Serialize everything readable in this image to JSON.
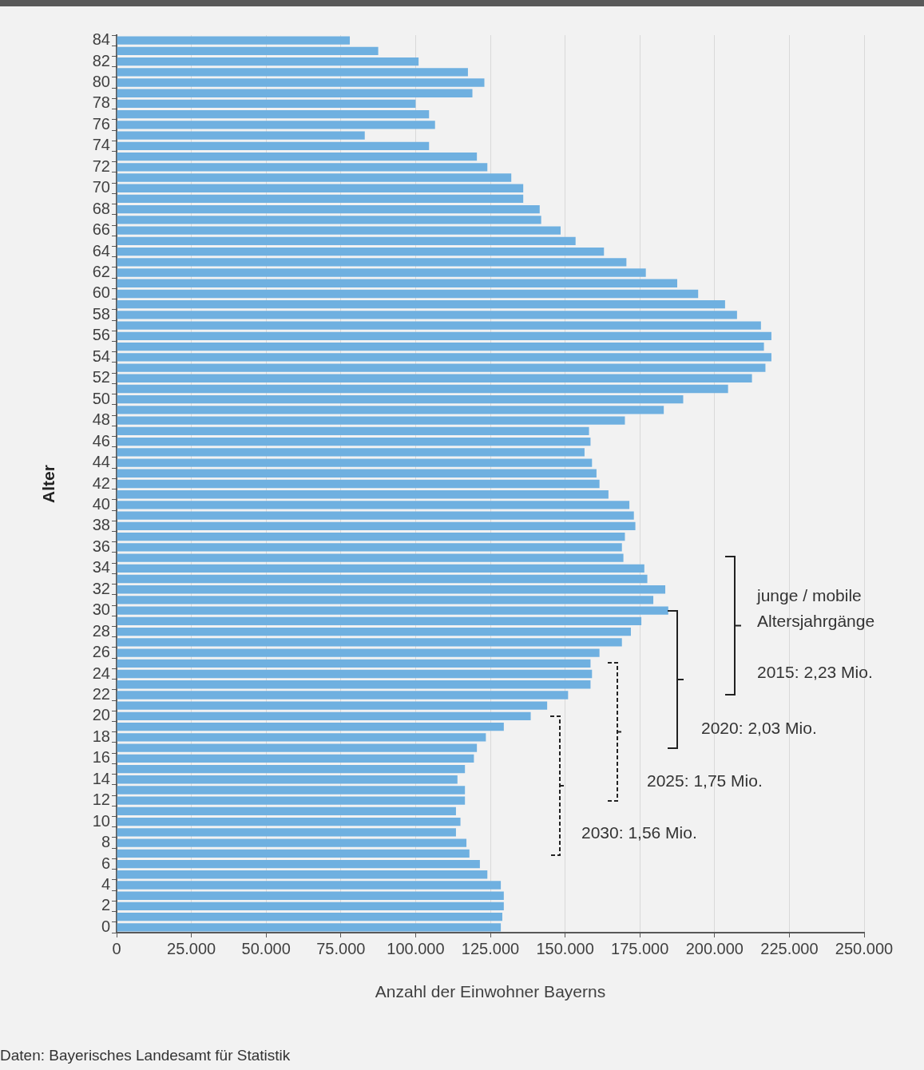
{
  "chart_data": {
    "type": "bar",
    "orientation": "horizontal",
    "xlabel": "Anzahl der Einwohner Bayerns",
    "ylabel": "Alter",
    "categories": [
      "84",
      null,
      "82",
      null,
      "80",
      null,
      "78",
      null,
      "76",
      null,
      "74",
      null,
      "72",
      null,
      "70",
      null,
      "68",
      null,
      "66",
      null,
      "64",
      null,
      "62",
      null,
      "60",
      null,
      "58",
      null,
      "56",
      null,
      "54",
      null,
      "52",
      null,
      "50",
      null,
      "48",
      null,
      "46",
      null,
      "44",
      null,
      "42",
      null,
      "40",
      null,
      "38",
      null,
      "36",
      null,
      "34",
      null,
      "32",
      null,
      "30",
      null,
      "28",
      null,
      "26",
      null,
      "24",
      null,
      "22",
      null,
      "20",
      null,
      "18",
      null,
      "16",
      null,
      "14",
      null,
      "12",
      null,
      "10",
      null,
      "8",
      null,
      "6",
      null,
      "4",
      null,
      "2",
      null,
      "0"
    ],
    "values": [
      78000,
      87500,
      101000,
      117500,
      123000,
      119000,
      100000,
      104500,
      106500,
      83000,
      104500,
      120500,
      124000,
      132000,
      136000,
      136000,
      141500,
      142000,
      148500,
      153500,
      163000,
      170500,
      177000,
      187500,
      194500,
      203500,
      207500,
      215500,
      219000,
      216500,
      219000,
      217000,
      212500,
      204500,
      189500,
      183000,
      170000,
      158000,
      158500,
      156500,
      159000,
      160500,
      161500,
      164500,
      171500,
      173000,
      173500,
      170000,
      169000,
      169500,
      176500,
      177500,
      183500,
      179500,
      184500,
      175500,
      172000,
      169000,
      161500,
      158500,
      159000,
      158500,
      151000,
      144000,
      138500,
      129500,
      123500,
      120500,
      119500,
      116500,
      114000,
      116500,
      116500,
      113500,
      115000,
      113500,
      117000,
      118000,
      121500,
      124000,
      128500,
      129500,
      129500,
      129000,
      128500
    ],
    "color": "#6fb0e0",
    "xlim": [
      0,
      250000
    ],
    "xticks": [
      0,
      {
        "value": 25000,
        "label": "25.000"
      },
      {
        "value": 50000,
        "label": "50.000"
      },
      {
        "value": 75000,
        "label": "75.000"
      },
      {
        "value": 100000,
        "label": "100.000"
      },
      {
        "value": 125000,
        "label": "125.000"
      },
      {
        "value": 150000,
        "label": "150.000"
      },
      {
        "value": 175000,
        "label": "175.000"
      },
      {
        "value": 200000,
        "label": "200.000"
      },
      {
        "value": 225000,
        "label": "225.000"
      },
      {
        "value": 250000,
        "label": "250.000"
      }
    ],
    "grid": "x",
    "annotations": [
      "junge / mobile Altersjahrgänge",
      "2015: 2,23 Mio.",
      "2020: 2,03 Mio.",
      "2025: 1,75 Mio.",
      "2030: 1,56 Mio.",
      "Daten: Bayerisches Landesamt für Statistik"
    ]
  }
}
